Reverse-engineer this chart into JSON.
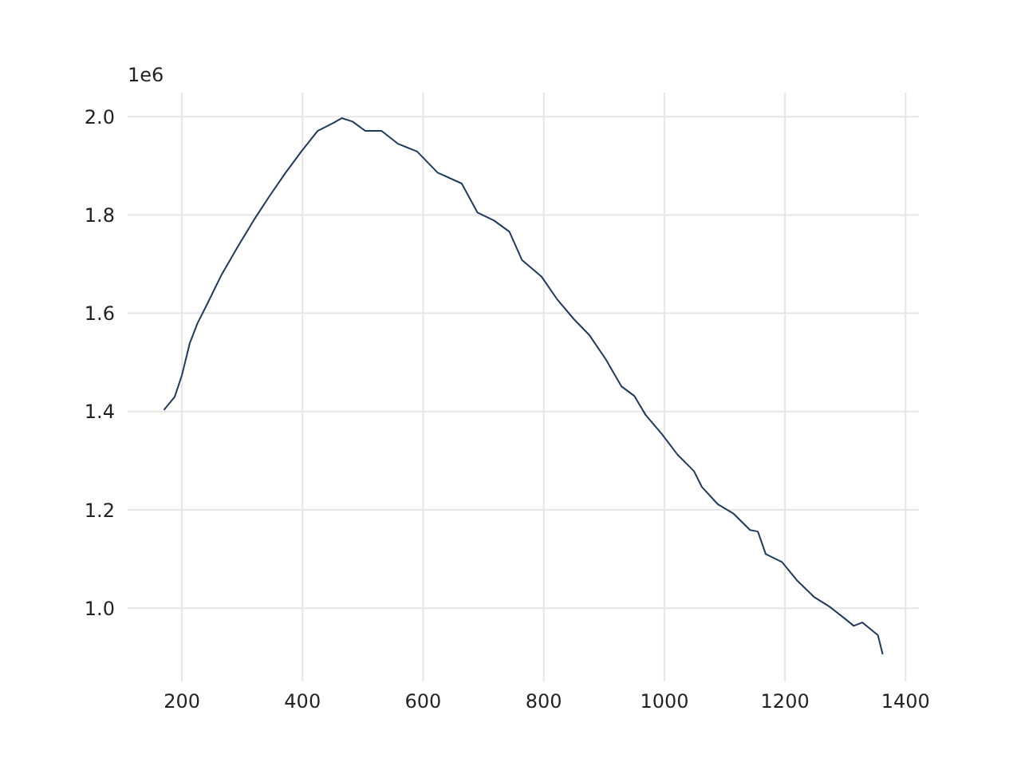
{
  "chart_data": {
    "type": "line",
    "x": [
      170,
      188,
      200,
      213,
      226,
      240,
      266,
      292,
      319,
      345,
      372,
      398,
      425,
      451,
      465,
      483,
      504,
      531,
      558,
      590,
      624,
      664,
      690,
      717,
      743,
      764,
      796,
      823,
      850,
      876,
      903,
      929,
      950,
      969,
      996,
      1022,
      1049,
      1062,
      1089,
      1115,
      1142,
      1155,
      1168,
      1195,
      1221,
      1248,
      1274,
      1301,
      1314,
      1328,
      1354,
      1362
    ],
    "series": [
      {
        "color": "#1f3a5f",
        "values": [
          1.403,
          1.43,
          1.474,
          1.539,
          1.58,
          1.614,
          1.679,
          1.734,
          1.789,
          1.838,
          1.886,
          1.929,
          1.971,
          1.987,
          1.997,
          1.99,
          1.971,
          1.971,
          1.945,
          1.929,
          1.886,
          1.864,
          1.805,
          1.789,
          1.766,
          1.708,
          1.675,
          1.627,
          1.588,
          1.555,
          1.506,
          1.451,
          1.432,
          1.393,
          1.354,
          1.312,
          1.279,
          1.247,
          1.211,
          1.192,
          1.159,
          1.156,
          1.11,
          1.094,
          1.055,
          1.023,
          1.003,
          0.977,
          0.964,
          0.971,
          0.945,
          0.906
        ]
      }
    ],
    "xlim": [
      110,
      1422
    ],
    "xticks": [
      200,
      400,
      600,
      800,
      1000,
      1200,
      1400
    ],
    "ylim": [
      0.851,
      2.049
    ],
    "yticks": [
      {
        "value": 1,
        "label": "1.0"
      },
      1.2,
      1.4,
      1.6,
      1.8,
      {
        "value": 2,
        "label": "2.0"
      }
    ],
    "annotations": [
      "1e6"
    ],
    "grid": true,
    "marker": "none",
    "line_style": "solid"
  }
}
